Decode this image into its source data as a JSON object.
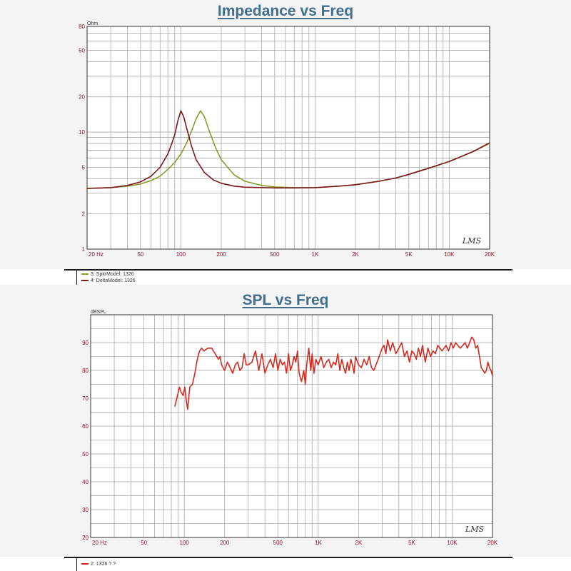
{
  "chart_data": [
    {
      "type": "line",
      "title": "Impedance vs Freq",
      "ylabel": "Ohm",
      "xscale": "log",
      "yscale": "log",
      "xlim": [
        20,
        20000
      ],
      "ylim": [
        1,
        80
      ],
      "xticks": [
        {
          "v": 20,
          "label": "20 Hz"
        },
        {
          "v": 50,
          "label": "50"
        },
        {
          "v": 100,
          "label": "100"
        },
        {
          "v": 200,
          "label": "200"
        },
        {
          "v": 500,
          "label": "500"
        },
        {
          "v": 1000,
          "label": "1K"
        },
        {
          "v": 2000,
          "label": "2K"
        },
        {
          "v": 5000,
          "label": "5K"
        },
        {
          "v": 10000,
          "label": "10K"
        },
        {
          "v": 20000,
          "label": "20K"
        }
      ],
      "yticks": [
        {
          "v": 1,
          "label": "1"
        },
        {
          "v": 2,
          "label": "2"
        },
        {
          "v": 5,
          "label": "5"
        },
        {
          "v": 10,
          "label": "10"
        },
        {
          "v": 20,
          "label": "20"
        },
        {
          "v": 50,
          "label": "50"
        },
        {
          "v": 80,
          "label": "80"
        }
      ],
      "grid": true,
      "watermark": "LMS",
      "series": [
        {
          "name": "3: SpkrModel: 1326",
          "color": "#8a9a2c",
          "points": [
            [
              20,
              3.3
            ],
            [
              30,
              3.35
            ],
            [
              40,
              3.45
            ],
            [
              50,
              3.6
            ],
            [
              60,
              3.85
            ],
            [
              70,
              4.2
            ],
            [
              80,
              4.8
            ],
            [
              90,
              5.5
            ],
            [
              100,
              6.5
            ],
            [
              110,
              8.0
            ],
            [
              120,
              10.2
            ],
            [
              130,
              13.0
            ],
            [
              140,
              15.2
            ],
            [
              150,
              13.5
            ],
            [
              160,
              10.8
            ],
            [
              180,
              7.5
            ],
            [
              200,
              5.8
            ],
            [
              250,
              4.3
            ],
            [
              300,
              3.8
            ],
            [
              400,
              3.5
            ],
            [
              500,
              3.4
            ],
            [
              700,
              3.35
            ],
            [
              1000,
              3.35
            ],
            [
              1500,
              3.45
            ],
            [
              2000,
              3.55
            ],
            [
              3000,
              3.8
            ],
            [
              4000,
              4.05
            ],
            [
              5000,
              4.35
            ],
            [
              7000,
              4.9
            ],
            [
              10000,
              5.6
            ],
            [
              15000,
              6.8
            ],
            [
              20000,
              8.0
            ]
          ]
        },
        {
          "name": "4: DeltaModel: 1326",
          "color": "#7a1a1a",
          "points": [
            [
              20,
              3.3
            ],
            [
              30,
              3.35
            ],
            [
              40,
              3.5
            ],
            [
              50,
              3.75
            ],
            [
              60,
              4.2
            ],
            [
              70,
              5.0
            ],
            [
              80,
              6.5
            ],
            [
              85,
              7.8
            ],
            [
              90,
              9.5
            ],
            [
              95,
              12.5
            ],
            [
              100,
              15.2
            ],
            [
              105,
              13.5
            ],
            [
              110,
              11.0
            ],
            [
              120,
              7.6
            ],
            [
              130,
              5.8
            ],
            [
              150,
              4.5
            ],
            [
              175,
              3.9
            ],
            [
              200,
              3.65
            ],
            [
              250,
              3.45
            ],
            [
              300,
              3.38
            ],
            [
              500,
              3.33
            ],
            [
              700,
              3.33
            ],
            [
              1000,
              3.35
            ],
            [
              1500,
              3.45
            ],
            [
              2000,
              3.55
            ],
            [
              3000,
              3.8
            ],
            [
              4000,
              4.05
            ],
            [
              5000,
              4.35
            ],
            [
              7000,
              4.9
            ],
            [
              10000,
              5.6
            ],
            [
              15000,
              6.8
            ],
            [
              20000,
              8.1
            ]
          ]
        }
      ]
    },
    {
      "type": "line",
      "title": "SPL vs Freq",
      "ylabel": "dBSPL",
      "xscale": "log",
      "xlim": [
        20,
        20000
      ],
      "ylim": [
        20,
        100
      ],
      "xticks": [
        {
          "v": 20,
          "label": "20 Hz"
        },
        {
          "v": 50,
          "label": "50"
        },
        {
          "v": 100,
          "label": "100"
        },
        {
          "v": 200,
          "label": "200"
        },
        {
          "v": 500,
          "label": "500"
        },
        {
          "v": 1000,
          "label": "1K"
        },
        {
          "v": 2000,
          "label": "2K"
        },
        {
          "v": 5000,
          "label": "5K"
        },
        {
          "v": 10000,
          "label": "10K"
        },
        {
          "v": 20000,
          "label": "20K"
        }
      ],
      "yticks": [
        {
          "v": 20,
          "label": "20"
        },
        {
          "v": 30,
          "label": "30"
        },
        {
          "v": 40,
          "label": "40"
        },
        {
          "v": 50,
          "label": "50"
        },
        {
          "v": 60,
          "label": "60"
        },
        {
          "v": 70,
          "label": "70"
        },
        {
          "v": 80,
          "label": "80"
        },
        {
          "v": 90,
          "label": "90"
        }
      ],
      "grid": true,
      "watermark": "LMS",
      "series": [
        {
          "name": "2: 1326 ? ?",
          "color": "#d42a1e",
          "points": [
            [
              85,
              67
            ],
            [
              89,
              71
            ],
            [
              92,
              74
            ],
            [
              95,
              72
            ],
            [
              98,
              71
            ],
            [
              101,
              74
            ],
            [
              103,
              70
            ],
            [
              106,
              66
            ],
            [
              110,
              74
            ],
            [
              115,
              75
            ],
            [
              120,
              79
            ],
            [
              125,
              84
            ],
            [
              130,
              87
            ],
            [
              135,
              88
            ],
            [
              140,
              87
            ],
            [
              150,
              88
            ],
            [
              160,
              88
            ],
            [
              170,
              86
            ],
            [
              180,
              84
            ],
            [
              185,
              85
            ],
            [
              190,
              82
            ],
            [
              200,
              80
            ],
            [
              210,
              83
            ],
            [
              220,
              81
            ],
            [
              230,
              79
            ],
            [
              240,
              82
            ],
            [
              250,
              83
            ],
            [
              260,
              80
            ],
            [
              270,
              81
            ],
            [
              280,
              86
            ],
            [
              290,
              82
            ],
            [
              300,
              82
            ],
            [
              320,
              83
            ],
            [
              340,
              87
            ],
            [
              360,
              80
            ],
            [
              380,
              86
            ],
            [
              400,
              79
            ],
            [
              420,
              82
            ],
            [
              440,
              84
            ],
            [
              460,
              81
            ],
            [
              480,
              86
            ],
            [
              500,
              80
            ],
            [
              520,
              84
            ],
            [
              540,
              82
            ],
            [
              560,
              83
            ],
            [
              580,
              79
            ],
            [
              600,
              86
            ],
            [
              620,
              80
            ],
            [
              640,
              82
            ],
            [
              660,
              85
            ],
            [
              680,
              83
            ],
            [
              700,
              87
            ],
            [
              720,
              79
            ],
            [
              750,
              76
            ],
            [
              780,
              80
            ],
            [
              800,
              75
            ],
            [
              820,
              82
            ],
            [
              850,
              88
            ],
            [
              880,
              80
            ],
            [
              900,
              86
            ],
            [
              930,
              79
            ],
            [
              960,
              84
            ],
            [
              1000,
              82
            ],
            [
              1050,
              85
            ],
            [
              1100,
              81
            ],
            [
              1150,
              83
            ],
            [
              1200,
              84
            ],
            [
              1250,
              81
            ],
            [
              1300,
              83
            ],
            [
              1350,
              82
            ],
            [
              1400,
              86
            ],
            [
              1450,
              80
            ],
            [
              1500,
              84
            ],
            [
              1550,
              81
            ],
            [
              1600,
              79
            ],
            [
              1650,
              83
            ],
            [
              1700,
              80
            ],
            [
              1750,
              84
            ],
            [
              1800,
              82
            ],
            [
              1850,
              79
            ],
            [
              1900,
              85
            ],
            [
              2000,
              82
            ],
            [
              2100,
              81
            ],
            [
              2200,
              84
            ],
            [
              2300,
              82
            ],
            [
              2400,
              85
            ],
            [
              2500,
              81
            ],
            [
              2600,
              80
            ],
            [
              2700,
              82
            ],
            [
              2800,
              84
            ],
            [
              2900,
              86
            ],
            [
              3000,
              88
            ],
            [
              3100,
              89
            ],
            [
              3200,
              86
            ],
            [
              3300,
              91
            ],
            [
              3450,
              87
            ],
            [
              3600,
              90
            ],
            [
              3800,
              86
            ],
            [
              4000,
              88
            ],
            [
              4200,
              90
            ],
            [
              4400,
              85
            ],
            [
              4600,
              87
            ],
            [
              4800,
              83
            ],
            [
              5000,
              87
            ],
            [
              5200,
              86
            ],
            [
              5400,
              84
            ],
            [
              5600,
              88
            ],
            [
              5800,
              85
            ],
            [
              6000,
              89
            ],
            [
              6300,
              83
            ],
            [
              6600,
              88
            ],
            [
              6900,
              85
            ],
            [
              7200,
              87
            ],
            [
              7500,
              86
            ],
            [
              7800,
              89
            ],
            [
              8100,
              88
            ],
            [
              8400,
              87
            ],
            [
              8700,
              88
            ],
            [
              9000,
              89
            ],
            [
              9400,
              87
            ],
            [
              9800,
              90
            ],
            [
              10200,
              88
            ],
            [
              10600,
              90
            ],
            [
              11000,
              89
            ],
            [
              11500,
              88
            ],
            [
              12000,
              89
            ],
            [
              12500,
              90
            ],
            [
              13000,
              88
            ],
            [
              13500,
              90
            ],
            [
              14000,
              92
            ],
            [
              14500,
              91
            ],
            [
              15000,
              88
            ],
            [
              15500,
              89
            ],
            [
              16000,
              85
            ],
            [
              16500,
              81
            ],
            [
              17000,
              80
            ],
            [
              17500,
              79
            ],
            [
              18000,
              80
            ],
            [
              18500,
              83
            ],
            [
              19000,
              81
            ],
            [
              19500,
              80
            ],
            [
              20000,
              78
            ]
          ]
        }
      ]
    }
  ]
}
